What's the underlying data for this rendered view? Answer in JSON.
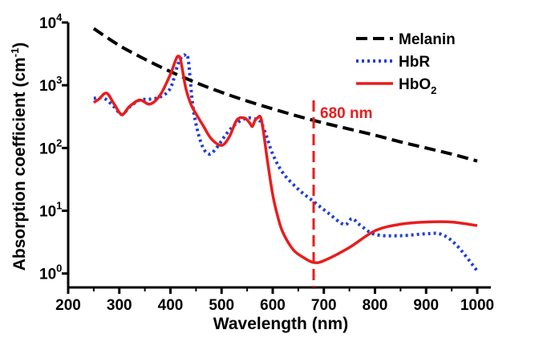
{
  "chart_data": {
    "type": "line",
    "xlabel": "Wavelength (nm)",
    "ylabel": "Absorption coefficient (cm",
    "ylabel_sup": "-1",
    "ylabel_close": ")",
    "xlim": [
      200,
      1000
    ],
    "ylim": [
      0.6,
      10000
    ],
    "yscale": "log",
    "grid": false,
    "legend_position": "top-right",
    "x_ticks": [
      {
        "value": 200,
        "label": "200"
      },
      {
        "value": 300,
        "label": "300"
      },
      {
        "value": 400,
        "label": "400"
      },
      {
        "value": 500,
        "label": "500"
      },
      {
        "value": 600,
        "label": "600"
      },
      {
        "value": 700,
        "label": "700"
      },
      {
        "value": 800,
        "label": "800"
      },
      {
        "value": 900,
        "label": "900"
      },
      {
        "value": 1000,
        "label": "1000"
      }
    ],
    "y_ticks": [
      {
        "value": 1,
        "base": "10",
        "exp": "0"
      },
      {
        "value": 10,
        "base": "10",
        "exp": "1"
      },
      {
        "value": 100,
        "base": "10",
        "exp": "2"
      },
      {
        "value": 1000,
        "base": "10",
        "exp": "3"
      },
      {
        "value": 10000,
        "base": "10",
        "exp": "4"
      }
    ],
    "series": [
      {
        "name": "Melanin",
        "label_main": "Melanin",
        "label_sub": "",
        "color": "#000000",
        "style": "dashed",
        "x": [
          250,
          300,
          350,
          400,
          450,
          500,
          550,
          600,
          650,
          700,
          750,
          800,
          850,
          900,
          950,
          1000
        ],
        "y": [
          8000,
          4300,
          2600,
          1650,
          1100,
          770,
          560,
          420,
          320,
          250,
          200,
          160,
          125,
          100,
          80,
          62
        ]
      },
      {
        "name": "HbR",
        "label_main": "HbR",
        "label_sub": "",
        "color": "#1f3fd6",
        "style": "dotted",
        "x": [
          250,
          270,
          290,
          305,
          320,
          340,
          360,
          380,
          400,
          415,
          425,
          430,
          435,
          445,
          460,
          475,
          490,
          510,
          530,
          550,
          565,
          575,
          585,
          600,
          620,
          650,
          680,
          710,
          740,
          755,
          770,
          800,
          850,
          900,
          930,
          960,
          1000
        ],
        "y": [
          620,
          620,
          450,
          340,
          450,
          580,
          600,
          650,
          900,
          2200,
          3000,
          2900,
          2500,
          400,
          120,
          80,
          100,
          170,
          250,
          300,
          290,
          270,
          180,
          80,
          40,
          22,
          14,
          9,
          6,
          7.5,
          6,
          4.2,
          4,
          4.3,
          4.2,
          2.8,
          1.1
        ]
      },
      {
        "name": "HbO2",
        "label_main": "HbO",
        "label_sub": "2",
        "color": "#e81d1d",
        "style": "solid",
        "x": [
          250,
          260,
          275,
          290,
          305,
          320,
          340,
          360,
          380,
          400,
          410,
          415,
          420,
          430,
          440,
          450,
          465,
          480,
          500,
          515,
          530,
          545,
          555,
          560,
          565,
          570,
          578,
          590,
          600,
          610,
          620,
          640,
          660,
          680,
          700,
          750,
          800,
          850,
          900,
          950,
          1000
        ],
        "y": [
          530,
          600,
          750,
          500,
          340,
          460,
          580,
          500,
          700,
          1500,
          2500,
          2900,
          2500,
          900,
          500,
          350,
          220,
          140,
          110,
          150,
          280,
          300,
          250,
          220,
          270,
          300,
          280,
          60,
          18,
          8,
          4.5,
          2.4,
          1.8,
          1.5,
          1.6,
          2.6,
          4.8,
          6.1,
          6.6,
          6.6,
          5.8
        ]
      }
    ],
    "annotations": [
      {
        "text": "680 nm",
        "x": 680,
        "color": "#e81d1d",
        "style": "dashed"
      }
    ]
  }
}
